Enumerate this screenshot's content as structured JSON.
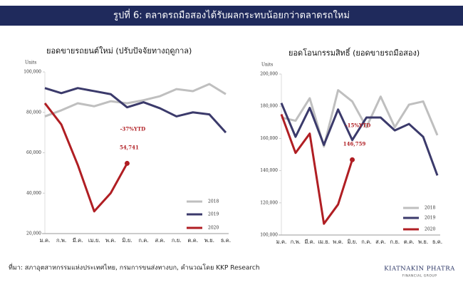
{
  "header": {
    "title": "รูปที่ 6: ตลาดรถมือสองได้รับผลกระทบน้อยกว่าตลาดรถใหม่"
  },
  "footer": {
    "source": "ที่มา: สภาอุตสาหกรรมแห่งประเทศไทย, กรมการขนส่งทางบก, คำนวณโดย KKP Research",
    "logo": "KIATNAKIN PHATRA",
    "logo_sub": "FINANCIAL GROUP"
  },
  "chart_data": [
    {
      "type": "line",
      "title": "ยอดขายรถยนต์ใหม่ (ปรับปัจจัยทางฤดูกาล)",
      "y_label": "Units",
      "categories": [
        "ม.ค.",
        "ก.พ.",
        "มี.ค.",
        "เม.ย.",
        "พ.ค.",
        "มิ.ย.",
        "ก.ค.",
        "ส.ค.",
        "ก.ย.",
        "ต.ค.",
        "พ.ย.",
        "ธ.ค."
      ],
      "ylim": [
        20000,
        100000
      ],
      "yticks": [
        {
          "value": 20000,
          "label": "20,000"
        },
        {
          "value": 40000,
          "label": "40,000"
        },
        {
          "value": 60000,
          "label": "60,000"
        },
        {
          "value": 80000,
          "label": "80,000"
        },
        {
          "value": 100000,
          "label": "100,000"
        }
      ],
      "legend": "lower right",
      "annotations": [
        "-37%YTD"
      ],
      "series": [
        {
          "name": "2018",
          "color": "#bfbfbf",
          "values": [
            78000,
            81000,
            84500,
            83000,
            85500,
            84500,
            86000,
            88000,
            91500,
            90500,
            94000,
            89000
          ]
        },
        {
          "name": "2019",
          "color": "#3b3a6b",
          "values": [
            92000,
            89500,
            92000,
            90500,
            89000,
            82500,
            85000,
            82000,
            78000,
            80000,
            79000,
            70000
          ]
        },
        {
          "name": "2020",
          "color": "#b01e23",
          "values": [
            84500,
            74000,
            54000,
            31000,
            40000,
            54741,
            null,
            null,
            null,
            null,
            null,
            null
          ],
          "value_labels": [
            null,
            null,
            null,
            null,
            null,
            "54,741",
            null,
            null,
            null,
            null,
            null,
            null
          ]
        }
      ]
    },
    {
      "type": "line",
      "title": "ยอดโอนกรรมสิทธิ์ (ยอดขายรถมือสอง)",
      "y_label": "Units",
      "categories": [
        "ม.ค.",
        "ก.พ.",
        "มี.ค.",
        "เม.ย.",
        "พ.ค.",
        "มิ.ย.",
        "ก.ค.",
        "ส.ค.",
        "ก.ย.",
        "ต.ค.",
        "พ.ย.",
        "ธ.ค."
      ],
      "ylim": [
        100000,
        200000
      ],
      "yticks": [
        {
          "value": 100000,
          "label": "100,000"
        },
        {
          "value": 120000,
          "label": "120,000"
        },
        {
          "value": 140000,
          "label": "140,000"
        },
        {
          "value": 160000,
          "label": "160,000"
        },
        {
          "value": 180000,
          "label": "180,000"
        },
        {
          "value": 200000,
          "label": "200,000"
        }
      ],
      "legend": "lower right",
      "annotations": [
        "-15%YTD"
      ],
      "series": [
        {
          "name": "2018",
          "color": "#bfbfbf",
          "values": [
            173000,
            171000,
            185000,
            155000,
            190000,
            183000,
            167000,
            186000,
            167000,
            181000,
            183000,
            162000
          ]
        },
        {
          "name": "2019",
          "color": "#3b3a6b",
          "values": [
            182000,
            161000,
            179000,
            156000,
            178000,
            159000,
            173000,
            173000,
            165000,
            169000,
            161000,
            137000
          ]
        },
        {
          "name": "2020",
          "color": "#b01e23",
          "values": [
            175000,
            151000,
            163000,
            107000,
            119000,
            146759,
            null,
            null,
            null,
            null,
            null,
            null
          ],
          "value_labels": [
            null,
            null,
            null,
            null,
            null,
            "146,759",
            null,
            null,
            null,
            null,
            null,
            null
          ]
        }
      ]
    }
  ]
}
